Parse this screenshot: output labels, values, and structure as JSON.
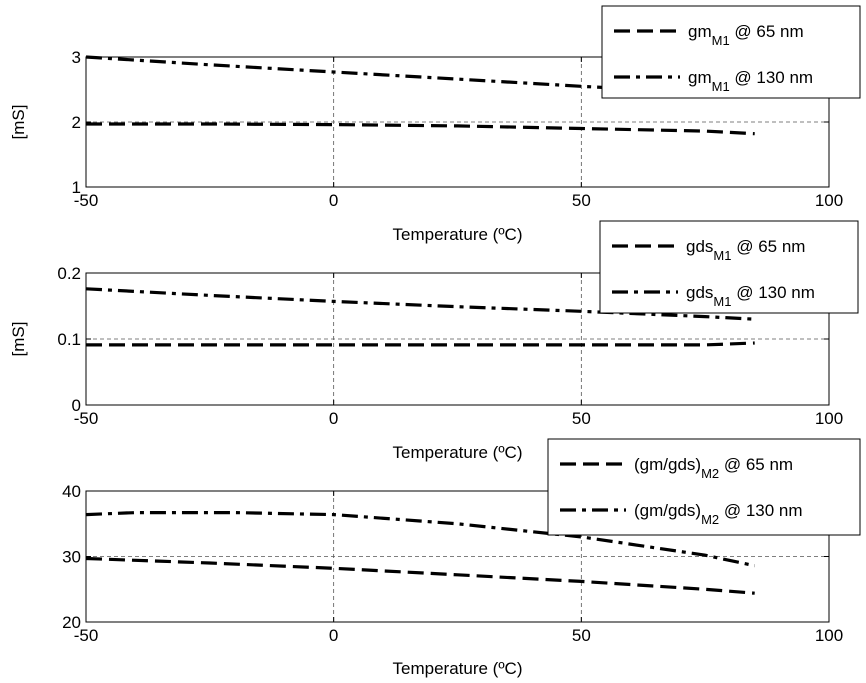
{
  "chart_data": [
    {
      "type": "line",
      "title": "",
      "xlabel": "Temperature (ºC)",
      "ylabel": "[mS]",
      "xlim": [
        -50,
        100
      ],
      "ylim": [
        1,
        3
      ],
      "xticks": [
        "-50",
        "0",
        "50",
        "100"
      ],
      "yticks": [
        "1",
        "2",
        "3"
      ],
      "grid": true,
      "legend_position": "top-right",
      "series": [
        {
          "name_main": "gm",
          "name_sub": "M1",
          "name_rest": " @ 65 nm",
          "style": "dashed",
          "x": [
            -50,
            -25,
            0,
            25,
            50,
            75,
            85
          ],
          "y": [
            1.97,
            1.97,
            1.96,
            1.94,
            1.9,
            1.86,
            1.82
          ]
        },
        {
          "name_main": "gm",
          "name_sub": "M1",
          "name_rest": " @ 130 nm",
          "style": "dashdot",
          "x": [
            -50,
            -25,
            0,
            25,
            50,
            75,
            85
          ],
          "y": [
            3.0,
            2.88,
            2.77,
            2.66,
            2.55,
            2.45,
            2.41
          ]
        }
      ]
    },
    {
      "type": "line",
      "title": "",
      "xlabel": "Temperature (ºC)",
      "ylabel": "[mS]",
      "xlim": [
        -50,
        100
      ],
      "ylim": [
        0,
        0.2
      ],
      "xticks": [
        "-50",
        "0",
        "50",
        "100"
      ],
      "yticks": [
        "0",
        "0.1",
        "0.2"
      ],
      "grid": true,
      "legend_position": "top-right",
      "series": [
        {
          "name_main": "gds",
          "name_sub": "M1",
          "name_rest": " @ 65 nm",
          "style": "dashed",
          "x": [
            -50,
            -25,
            0,
            25,
            50,
            75,
            85
          ],
          "y": [
            0.091,
            0.091,
            0.091,
            0.091,
            0.091,
            0.091,
            0.094
          ]
        },
        {
          "name_main": "gds",
          "name_sub": "M1",
          "name_rest": " @ 130 nm",
          "style": "dashdot",
          "x": [
            -50,
            -25,
            0,
            25,
            50,
            75,
            85
          ],
          "y": [
            0.176,
            0.166,
            0.157,
            0.149,
            0.142,
            0.134,
            0.13
          ]
        }
      ]
    },
    {
      "type": "line",
      "title": "",
      "xlabel": "Temperature (ºC)",
      "ylabel": "",
      "xlim": [
        -50,
        100
      ],
      "ylim": [
        20,
        40
      ],
      "xticks": [
        "-50",
        "0",
        "50",
        "100"
      ],
      "yticks": [
        "20",
        "30",
        "40"
      ],
      "grid": true,
      "legend_position": "top-right",
      "series": [
        {
          "name_main": "(gm/gds)",
          "name_sub": "M2",
          "name_rest": " @ 65 nm",
          "style": "dashed",
          "x": [
            -50,
            -25,
            0,
            25,
            50,
            75,
            85
          ],
          "y": [
            29.7,
            29.0,
            28.2,
            27.2,
            26.2,
            25.0,
            24.4
          ]
        },
        {
          "name_main": "(gm/gds)",
          "name_sub": "M2",
          "name_rest": " @ 130 nm",
          "style": "dashdot",
          "x": [
            -50,
            -40,
            -20,
            0,
            25,
            50,
            75,
            85
          ],
          "y": [
            36.4,
            36.7,
            36.7,
            36.4,
            35.0,
            33.0,
            30.2,
            28.6
          ]
        }
      ]
    }
  ]
}
